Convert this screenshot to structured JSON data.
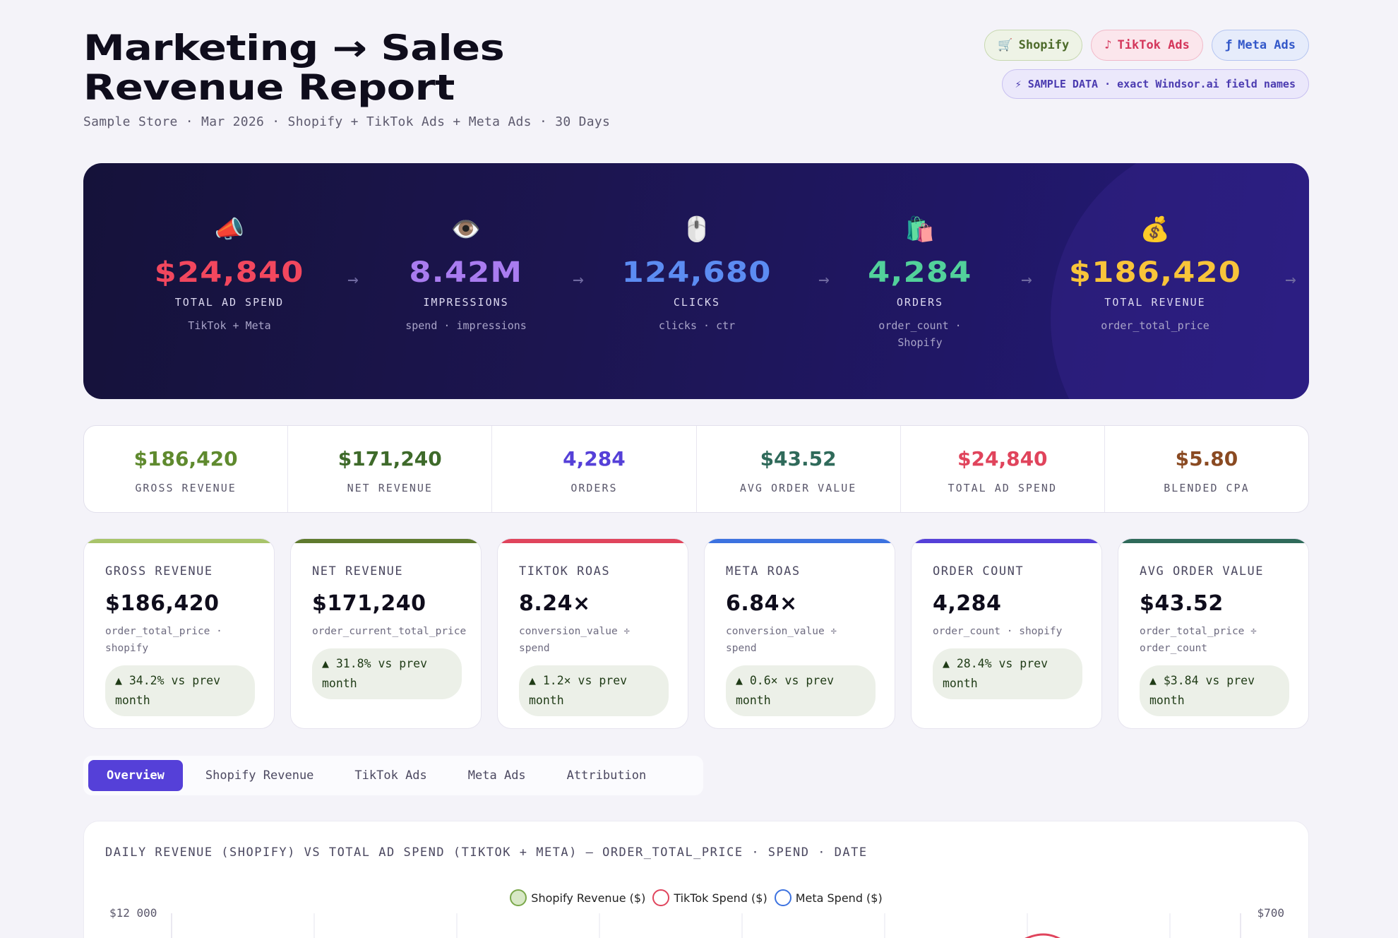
{
  "header": {
    "title_line1": "Marketing → Sales",
    "title_line2": "Revenue Report",
    "subtitle": "Sample Store · Mar 2026 · Shopify + TikTok Ads + Meta Ads · 30 Days",
    "pills": {
      "shopify": {
        "icon": "🛒",
        "label": "Shopify"
      },
      "tiktok": {
        "icon": "♪",
        "label": "TikTok Ads"
      },
      "meta": {
        "icon": "ƒ",
        "label": "Meta Ads"
      },
      "sample": "⚡ SAMPLE DATA · exact Windsor.ai field names"
    }
  },
  "funnel": [
    {
      "emoji": "📣",
      "value": "$24,840",
      "label": "TOTAL AD SPEND",
      "sub": "TikTok + Meta",
      "color": "#f2475e"
    },
    {
      "emoji": "👁️",
      "value": "8.42M",
      "label": "IMPRESSIONS",
      "sub": "spend · impressions",
      "color": "#a97cf0"
    },
    {
      "emoji": "🖱️",
      "value": "124,680",
      "label": "CLICKS",
      "sub": "clicks · ctr",
      "color": "#5c8cf2"
    },
    {
      "emoji": "🛍️",
      "value": "4,284",
      "label": "ORDERS",
      "sub": "order_count ·\nShopify",
      "color": "#52d19b"
    },
    {
      "emoji": "💰",
      "value": "$186,420",
      "label": "TOTAL REVENUE",
      "sub": "order_total_price",
      "color": "#f8c43a"
    }
  ],
  "summary": [
    {
      "value": "$186,420",
      "label": "GROSS REVENUE",
      "color": "#5f8a2e"
    },
    {
      "value": "$171,240",
      "label": "NET REVENUE",
      "color": "#3e6a2a"
    },
    {
      "value": "4,284",
      "label": "ORDERS",
      "color": "#5540d8"
    },
    {
      "value": "$43.52",
      "label": "AVG ORDER VALUE",
      "color": "#2f6a5a"
    },
    {
      "value": "$24,840",
      "label": "TOTAL AD SPEND",
      "color": "#e0445c"
    },
    {
      "value": "$5.80",
      "label": "BLENDED CPA",
      "color": "#8a4a22"
    }
  ],
  "kpis": [
    {
      "label": "GROSS REVENUE",
      "value": "$186,420",
      "formula": "order_total_price ·\nshopify",
      "delta": "▲ 34.2% vs prev month",
      "bar": "#a8c46a"
    },
    {
      "label": "NET REVENUE",
      "value": "$171,240",
      "formula": "order_current_total_price",
      "delta": "▲ 31.8% vs prev month",
      "bar": "#5f7a2e"
    },
    {
      "label": "TIKTOK ROAS",
      "value": "8.24×",
      "formula": "conversion_value ÷\nspend",
      "delta": "▲ 1.2× vs prev month",
      "bar": "#e0445c"
    },
    {
      "label": "META ROAS",
      "value": "6.84×",
      "formula": "conversion_value ÷\nspend",
      "delta": "▲ 0.6× vs prev month",
      "bar": "#3c72e0"
    },
    {
      "label": "ORDER COUNT",
      "value": "4,284",
      "formula": "order_count · shopify",
      "delta": "▲ 28.4% vs prev month",
      "bar": "#5540d8"
    },
    {
      "label": "AVG ORDER VALUE",
      "value": "$43.52",
      "formula": "order_total_price ÷\norder_count",
      "delta": "▲ $3.84 vs prev month",
      "bar": "#2f6a5a"
    }
  ],
  "tabs": [
    "Overview",
    "Shopify Revenue",
    "TikTok Ads",
    "Meta Ads",
    "Attribution"
  ],
  "active_tab": "Overview",
  "chart": {
    "title": "DAILY REVENUE (SHOPIFY) VS TOTAL AD SPEND (TIKTOK + META) — ORDER_TOTAL_PRICE · SPEND · DATE",
    "legend": [
      {
        "label": "Shopify Revenue ($)",
        "border": "#7aa84a",
        "fill": "#d8e8c6"
      },
      {
        "label": "TikTok Spend ($)",
        "border": "#e0445c",
        "fill": "#ffffff"
      },
      {
        "label": "Meta Spend ($)",
        "border": "#3c72e0",
        "fill": "#ffffff"
      }
    ],
    "y_left_top": "$12 000",
    "y_right_top": "$700"
  }
}
